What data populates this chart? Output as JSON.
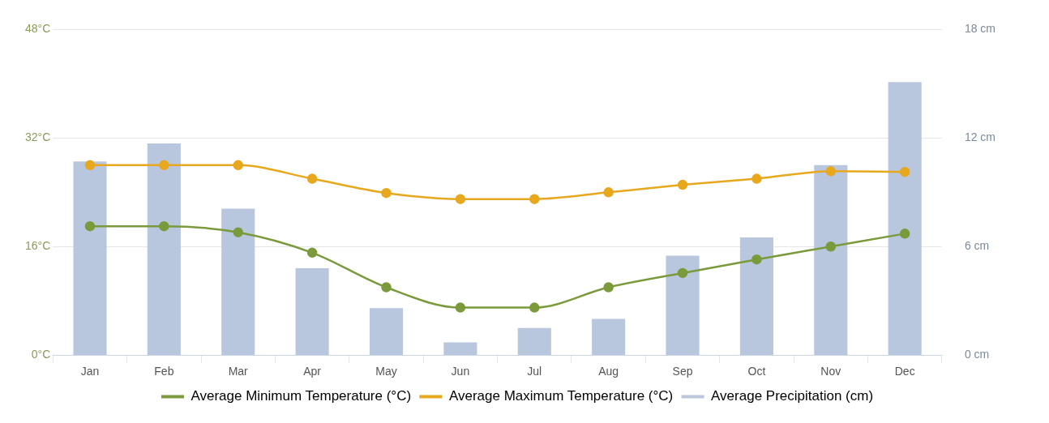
{
  "chart_data": {
    "type": "bar",
    "categories": [
      "Jan",
      "Feb",
      "Mar",
      "Apr",
      "May",
      "Jun",
      "Jul",
      "Aug",
      "Sep",
      "Oct",
      "Nov",
      "Dec"
    ],
    "series": [
      {
        "name": "Average Minimum Temperature (°C)",
        "type": "line",
        "color": "#7a9a3c",
        "values": [
          19,
          19,
          18.1,
          15.1,
          10,
          7,
          7,
          10,
          12.1,
          14.1,
          16,
          17.9
        ]
      },
      {
        "name": "Average Maximum Temperature (°C)",
        "type": "line",
        "color": "#e8a81e",
        "values": [
          28,
          28,
          28,
          26,
          23.9,
          23,
          23,
          24,
          25.1,
          26,
          27.1,
          27
        ]
      },
      {
        "name": "Average Precipitation (cm)",
        "axis": "y2",
        "color": "#b8c7de",
        "values": [
          10.7,
          11.7,
          8.1,
          4.8,
          2.6,
          0.7,
          1.5,
          2.0,
          5.5,
          6.5,
          10.5,
          15.1
        ]
      }
    ],
    "ylim": [
      0,
      48
    ],
    "yticks": [
      {
        "value": 0,
        "label": "0°C"
      },
      {
        "value": 16,
        "label": "16°C"
      },
      {
        "value": 32,
        "label": "32°C"
      },
      {
        "value": 48,
        "label": "48°C"
      }
    ],
    "y2lim": [
      0,
      18
    ],
    "y2ticks": [
      {
        "value": 0,
        "label": "0 cm"
      },
      {
        "value": 6,
        "label": "6 cm"
      },
      {
        "value": 12,
        "label": "12 cm"
      },
      {
        "value": 18,
        "label": "18 cm"
      }
    ],
    "grid": "y",
    "marker": "circle",
    "legend": "bottom"
  }
}
